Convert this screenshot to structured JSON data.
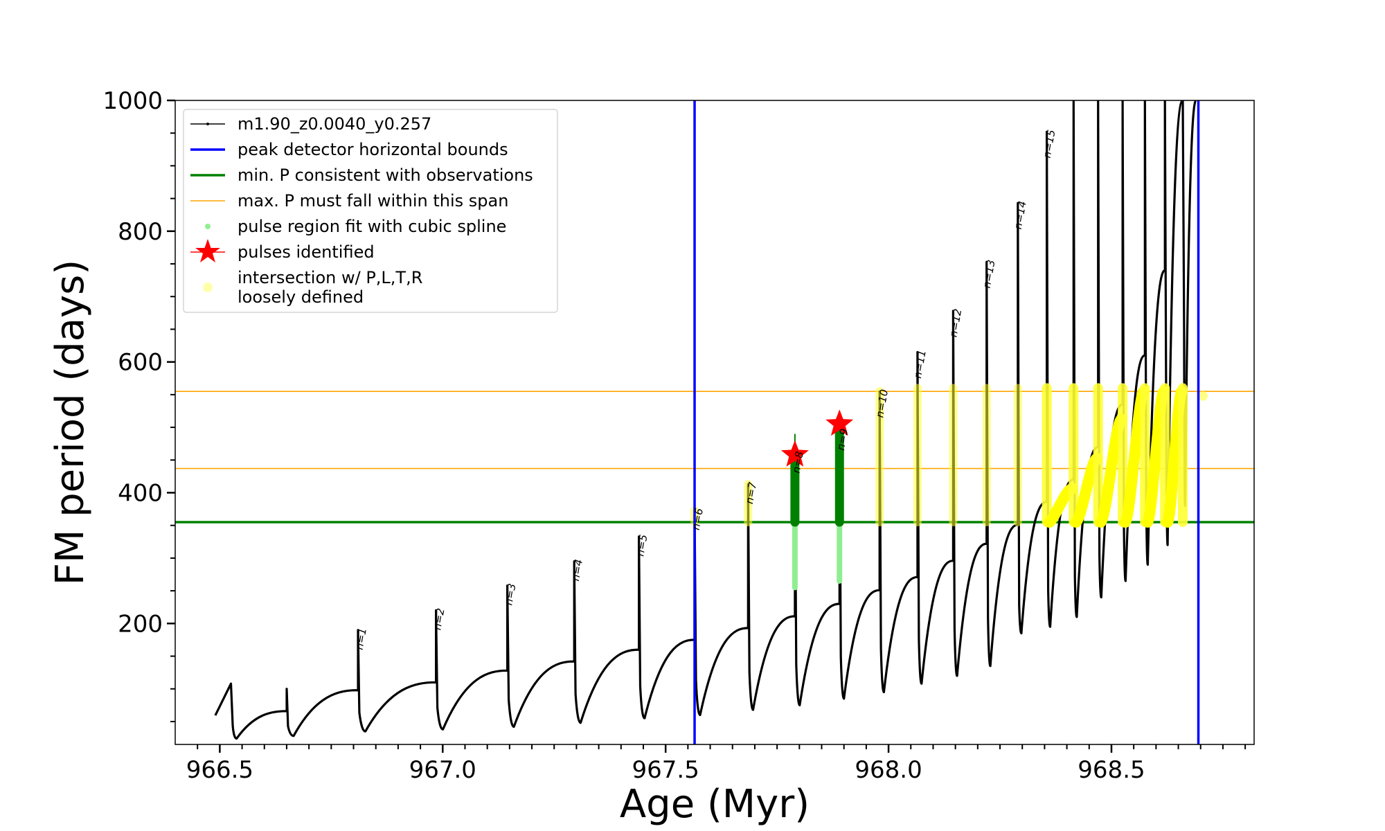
{
  "chart_data": {
    "type": "line",
    "xlabel": "Age (Myr)",
    "ylabel": "FM period (days)",
    "xlim": [
      966.4,
      968.82
    ],
    "ylim": [
      15,
      1000
    ],
    "xticks": [
      966.5,
      967.0,
      967.5,
      968.0,
      968.5
    ],
    "xtick_labels": [
      "966.5",
      "967.0",
      "967.5",
      "968.0",
      "968.5"
    ],
    "yticks": [
      200,
      400,
      600,
      800,
      1000
    ],
    "ytick_labels": [
      "200",
      "400",
      "600",
      "800",
      "1000"
    ],
    "legend_position": "upper left",
    "legend": [
      {
        "label": "m1.90_z0.0040_y0.257",
        "style": "black-line-dot"
      },
      {
        "label": "peak detector horizontal bounds",
        "style": "blue-line"
      },
      {
        "label": "min. P consistent with observations",
        "style": "green-line"
      },
      {
        "label": "max. P must fall within this span",
        "style": "orange-line"
      },
      {
        "label": "pulse region fit with cubic spline",
        "style": "lightgreen-dot"
      },
      {
        "label": "pulses identified",
        "style": "red-star"
      },
      {
        "label": "intersection w/ P,L,T,R",
        "label2": "loosely defined",
        "style": "yellow-dot"
      }
    ],
    "vertical_lines": [
      967.565,
      968.695
    ],
    "min_period_line": 355,
    "max_period_span": [
      437,
      555
    ],
    "pulses": [
      {
        "n": "n=1",
        "age": 966.81,
        "peak": 190,
        "base": 98,
        "trough": 35
      },
      {
        "n": "n=2",
        "age": 966.985,
        "peak": 220,
        "base": 110,
        "trough": 38
      },
      {
        "n": "n=3",
        "age": 967.145,
        "peak": 258,
        "base": 128,
        "trough": 42
      },
      {
        "n": "n=4",
        "age": 967.295,
        "peak": 295,
        "base": 142,
        "trough": 48
      },
      {
        "n": "n=5",
        "age": 967.44,
        "peak": 333,
        "base": 160,
        "trough": 55
      },
      {
        "n": "n=6",
        "age": 967.565,
        "peak": 373,
        "base": 175,
        "trough": 60
      },
      {
        "n": "n=7",
        "age": 967.685,
        "peak": 413,
        "base": 193,
        "trough": 68
      },
      {
        "n": "n=8",
        "age": 967.79,
        "peak": 460,
        "base": 211,
        "trough": 75
      },
      {
        "n": "n=9",
        "age": 967.89,
        "peak": 495,
        "base": 230,
        "trough": 85
      },
      {
        "n": "n=10",
        "age": 967.98,
        "peak": 555,
        "base": 251,
        "trough": 95
      },
      {
        "n": "n=11",
        "age": 968.065,
        "peak": 615,
        "base": 271,
        "trough": 108
      },
      {
        "n": "n=12",
        "age": 968.145,
        "peak": 678,
        "base": 296,
        "trough": 120
      },
      {
        "n": "n=13",
        "age": 968.22,
        "peak": 753,
        "base": 322,
        "trough": 135
      },
      {
        "n": "n=14",
        "age": 968.29,
        "peak": 843,
        "base": 351,
        "trough": 185
      },
      {
        "n": "n=15",
        "age": 968.355,
        "peak": 952,
        "base": 386,
        "trough": 195
      },
      {
        "n": "",
        "age": 968.415,
        "peak": 1000,
        "base": 420,
        "trough": 210
      },
      {
        "n": "",
        "age": 968.47,
        "peak": 1000,
        "base": 470,
        "trough": 240
      },
      {
        "n": "",
        "age": 968.525,
        "peak": 1000,
        "base": 535,
        "trough": 265
      },
      {
        "n": "",
        "age": 968.575,
        "peak": 1000,
        "base": 610,
        "trough": 290
      },
      {
        "n": "",
        "age": 968.62,
        "peak": 1000,
        "base": 740,
        "trough": 320
      },
      {
        "n": "",
        "age": 968.66,
        "peak": 1000,
        "base": 1000,
        "trough": 380
      }
    ],
    "early_flashes": [
      {
        "age": 966.525,
        "peak": 108,
        "base": 50,
        "trough": 24
      },
      {
        "age": 966.65,
        "peak": 100,
        "base": 66,
        "trough": 28
      }
    ],
    "pulses_identified": [
      {
        "age": 967.79,
        "period": 458
      },
      {
        "age": 967.89,
        "period": 505
      }
    ],
    "series": [
      {
        "name": "m1.90_z0.0040_y0.257",
        "color": "#000000"
      },
      {
        "name": "peak detector horizontal bounds",
        "color": "#0000ff"
      },
      {
        "name": "min. P consistent with observations",
        "color": "#008000"
      },
      {
        "name": "max. P must fall within this span",
        "color": "#ffa500"
      },
      {
        "name": "pulse region fit with cubic spline",
        "color": "#90ee90"
      },
      {
        "name": "pulses identified",
        "color": "#ff0000"
      },
      {
        "name": "intersection w/ P,L,T,R loosely defined",
        "color": "#ffff00"
      }
    ]
  }
}
